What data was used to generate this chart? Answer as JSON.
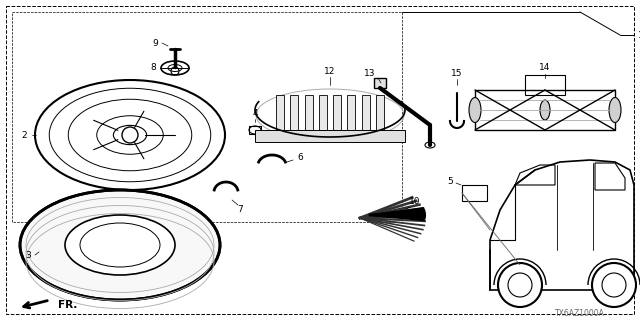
{
  "bg_color": "#ffffff",
  "line_color": "#000000",
  "gray": "#666666",
  "light_gray": "#aaaaaa",
  "dark_gray": "#333333",
  "diagram_code": "TX6AZ1000A",
  "figsize": [
    6.4,
    3.2
  ],
  "dpi": 100
}
